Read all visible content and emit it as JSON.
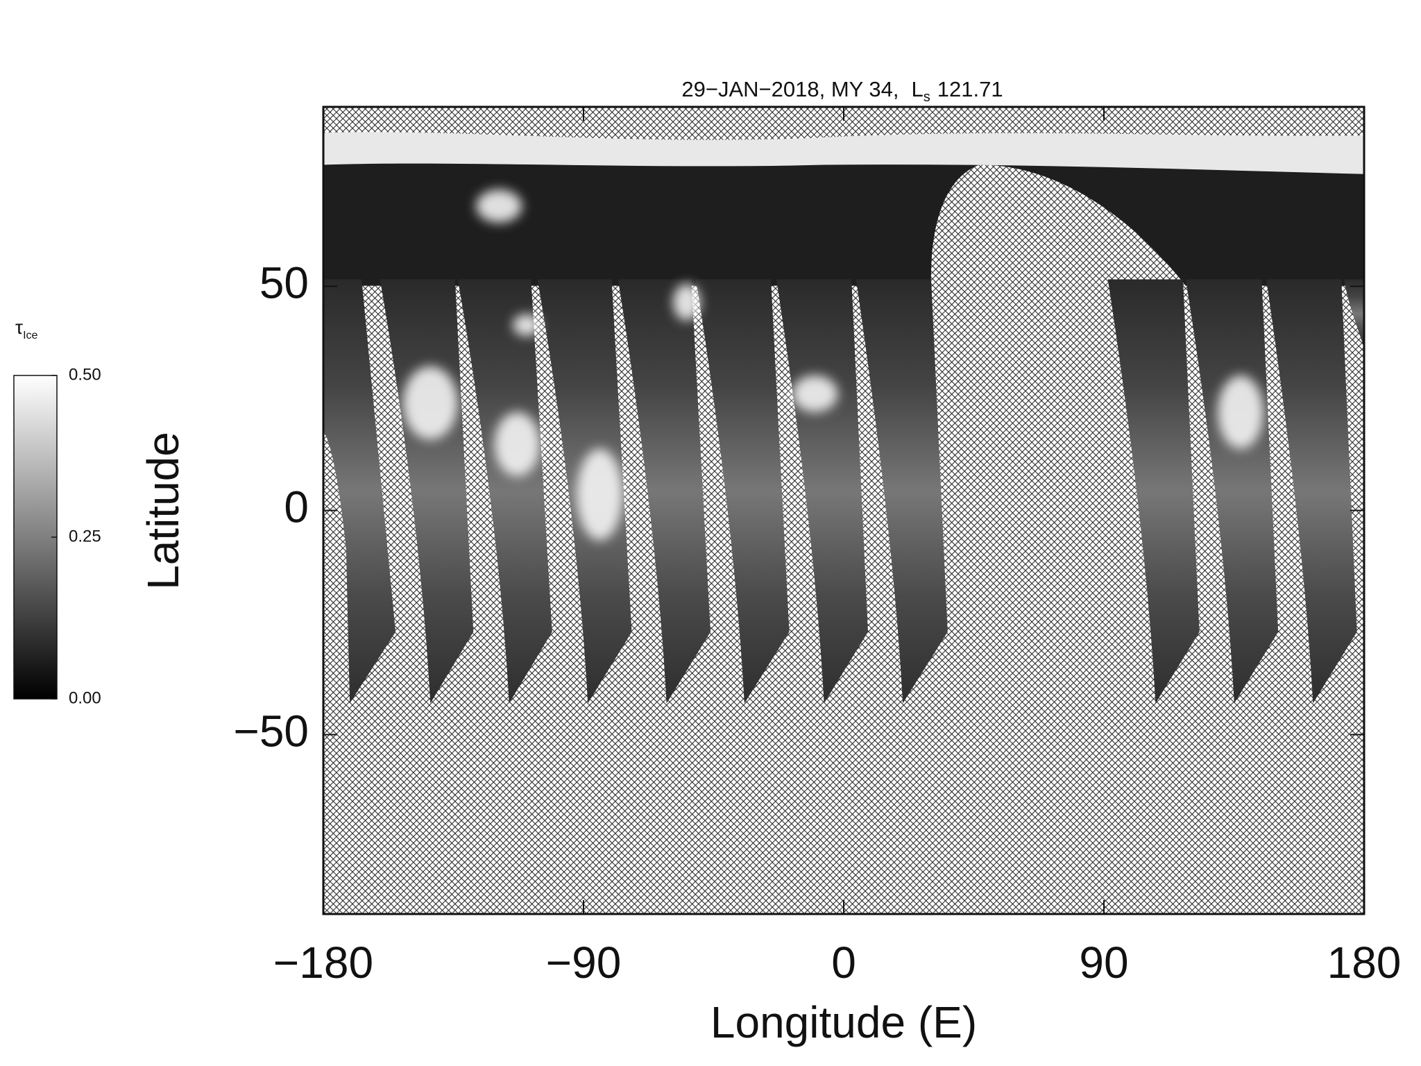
{
  "chart_data": {
    "type": "map",
    "title": {
      "text": "29−JAN−2018, MY 34,",
      "ls_symbol": "L",
      "ls_subscript": "s",
      "ls_value": "121.71"
    },
    "x_label": "Longitude (E)",
    "y_label": "Latitude",
    "xlim": [
      -180,
      180
    ],
    "xticks": [
      {
        "value": -180,
        "label": "−180"
      },
      {
        "value": -90,
        "label": "−90"
      },
      0,
      90,
      180
    ],
    "ylim": [
      -90,
      90
    ],
    "yticks": [
      {
        "value": -50,
        "label": "−50"
      },
      0,
      50
    ],
    "colorbar": {
      "symbol": "τ",
      "subscript": "Ice",
      "lim": [
        0,
        0.5
      ],
      "ticks": [
        {
          "value": 0,
          "label": "0.00"
        },
        {
          "value": 0.25,
          "label": "0.25"
        },
        {
          "value": 0.5,
          "label": "0.50"
        }
      ],
      "colors": [
        "#000000",
        "#ffffff"
      ]
    }
  }
}
